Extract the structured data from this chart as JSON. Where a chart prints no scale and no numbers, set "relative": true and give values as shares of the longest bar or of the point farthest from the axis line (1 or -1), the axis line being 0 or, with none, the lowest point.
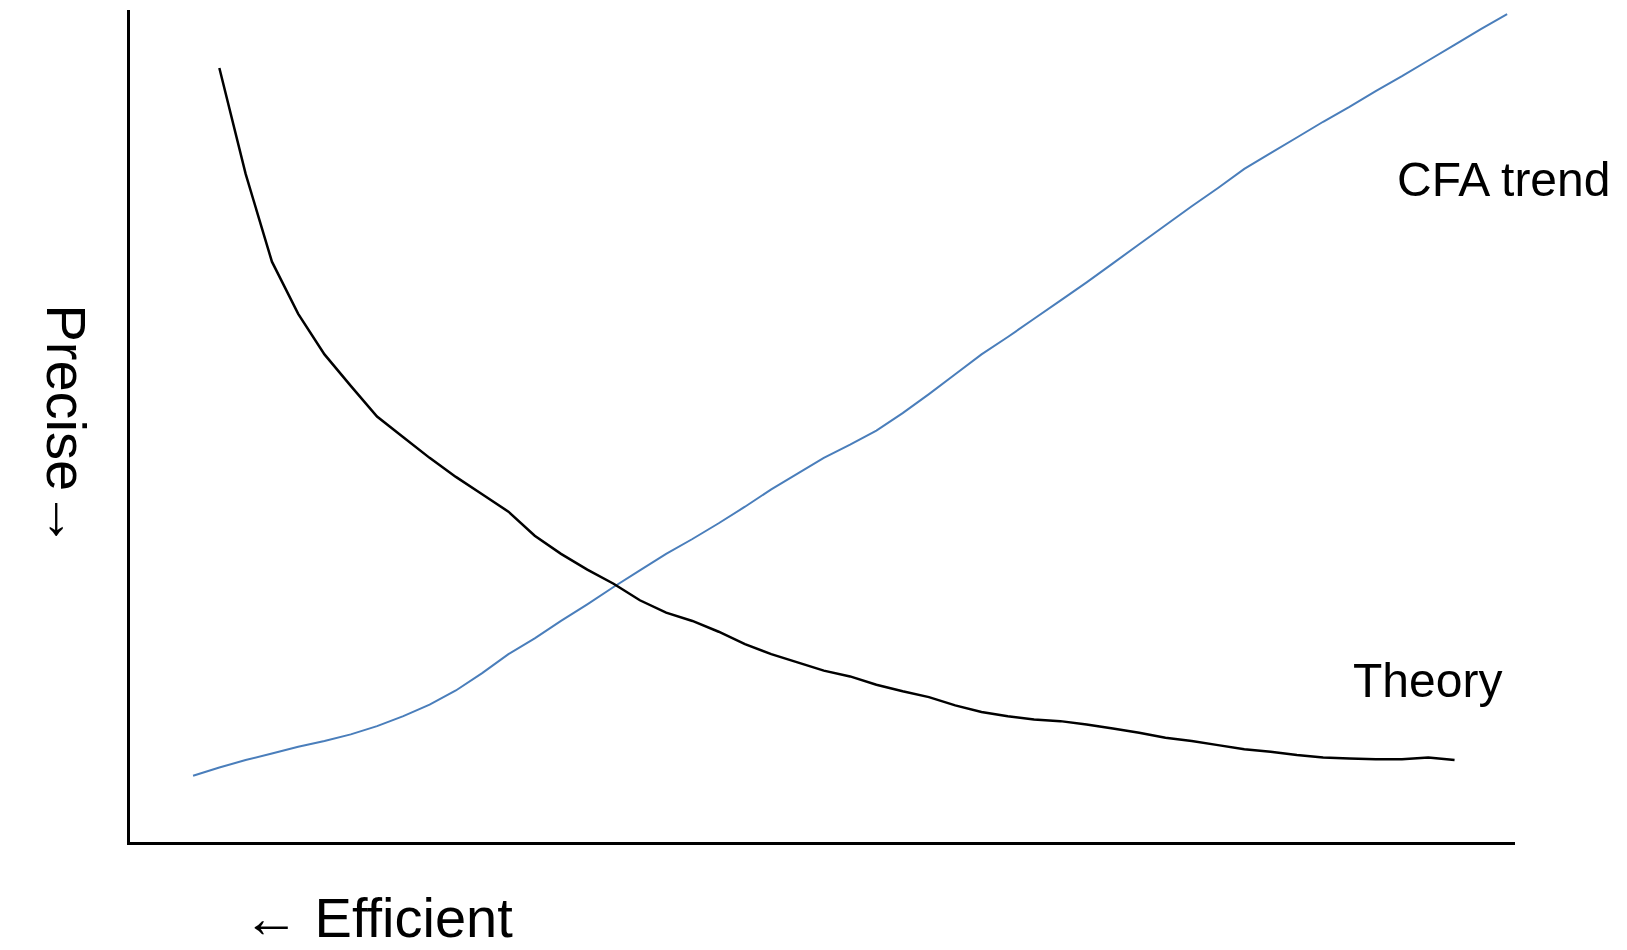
{
  "chart_data": {
    "type": "line",
    "relative": true,
    "xlabel": "← Efficient",
    "ylabel": "Precise→",
    "categories": [
      null,
      null,
      null,
      null,
      null,
      null,
      null,
      null,
      null,
      null,
      null,
      null,
      null,
      null,
      null,
      null,
      null,
      null,
      null,
      null,
      null,
      null,
      null,
      null,
      null,
      null,
      null,
      null,
      null,
      null,
      null,
      null,
      null,
      null,
      null,
      null,
      null,
      null,
      null,
      null,
      null,
      null,
      null,
      null,
      null,
      null,
      null,
      null,
      null,
      null,
      null
    ],
    "series": [
      {
        "name": "CFA trend",
        "color": "#4a7ebb",
        "values": [
          0.08,
          0.09,
          0.099,
          0.107,
          0.115,
          0.122,
          0.13,
          0.14,
          0.152,
          0.166,
          0.183,
          0.204,
          0.227,
          0.246,
          0.267,
          0.287,
          0.308,
          0.328,
          0.348,
          0.366,
          0.385,
          0.405,
          0.426,
          0.445,
          0.464,
          0.48,
          0.497,
          0.518,
          0.541,
          0.565,
          0.589,
          0.61,
          0.632,
          0.654,
          0.676,
          0.699,
          0.722,
          0.745,
          0.768,
          0.79,
          0.813,
          0.832,
          0.851,
          0.87,
          0.888,
          0.907,
          0.925,
          0.944,
          0.963,
          0.982,
          1.0
        ]
      },
      {
        "name": "Theory",
        "color": "#000000",
        "values": [
          null,
          0.935,
          0.807,
          0.701,
          0.638,
          0.589,
          0.551,
          0.514,
          0.489,
          0.464,
          0.441,
          0.42,
          0.399,
          0.37,
          0.348,
          0.329,
          0.312,
          0.292,
          0.277,
          0.267,
          0.254,
          0.239,
          0.227,
          0.217,
          0.207,
          0.2,
          0.19,
          0.182,
          0.175,
          0.165,
          0.157,
          0.152,
          0.148,
          0.146,
          0.142,
          0.137,
          0.132,
          0.126,
          0.122,
          0.117,
          0.112,
          0.109,
          0.105,
          0.102,
          0.101,
          0.1,
          0.1,
          0.102,
          0.099,
          null,
          null
        ]
      }
    ],
    "legend": false
  }
}
